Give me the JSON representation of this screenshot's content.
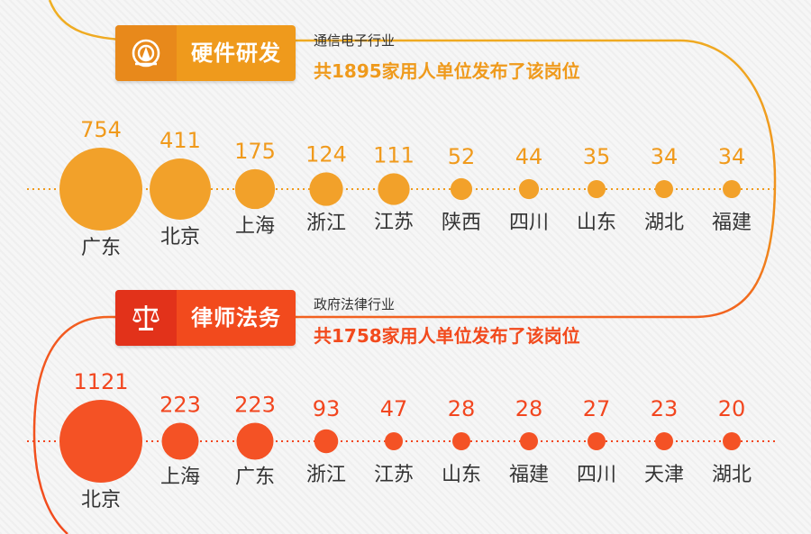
{
  "colors": {
    "section1_accent": "#ef9a1c",
    "section1_icon_bg": "#e8891b",
    "section1_bubble": "#f09a1c",
    "section2_accent": "#f24a1d",
    "section2_icon_bg": "#e2321a",
    "section2_bubble": "#f2461f",
    "label_text": "#333333"
  },
  "sections": [
    {
      "tag": "硬件研发",
      "icon": "lighthouse-icon",
      "industry": "通信电子行业",
      "summary": "共1895家用人单位发布了该岗位"
    },
    {
      "tag": "律师法务",
      "icon": "scales-of-justice-icon",
      "industry": "政府法律行业",
      "summary": "共1758家用人单位发布了该岗位"
    }
  ],
  "chart_data": [
    {
      "type": "bubble",
      "categories": [
        "广东",
        "北京",
        "上海",
        "浙江",
        "江苏",
        "陕西",
        "四川",
        "山东",
        "湖北",
        "福建"
      ],
      "values": [
        754,
        411,
        175,
        124,
        111,
        52,
        44,
        35,
        34,
        34
      ]
    },
    {
      "type": "bubble",
      "categories": [
        "北京",
        "上海",
        "广东",
        "浙江",
        "江苏",
        "山东",
        "福建",
        "四川",
        "天津",
        "湖北"
      ],
      "values": [
        1121,
        223,
        223,
        93,
        47,
        28,
        28,
        27,
        23,
        20
      ]
    }
  ]
}
